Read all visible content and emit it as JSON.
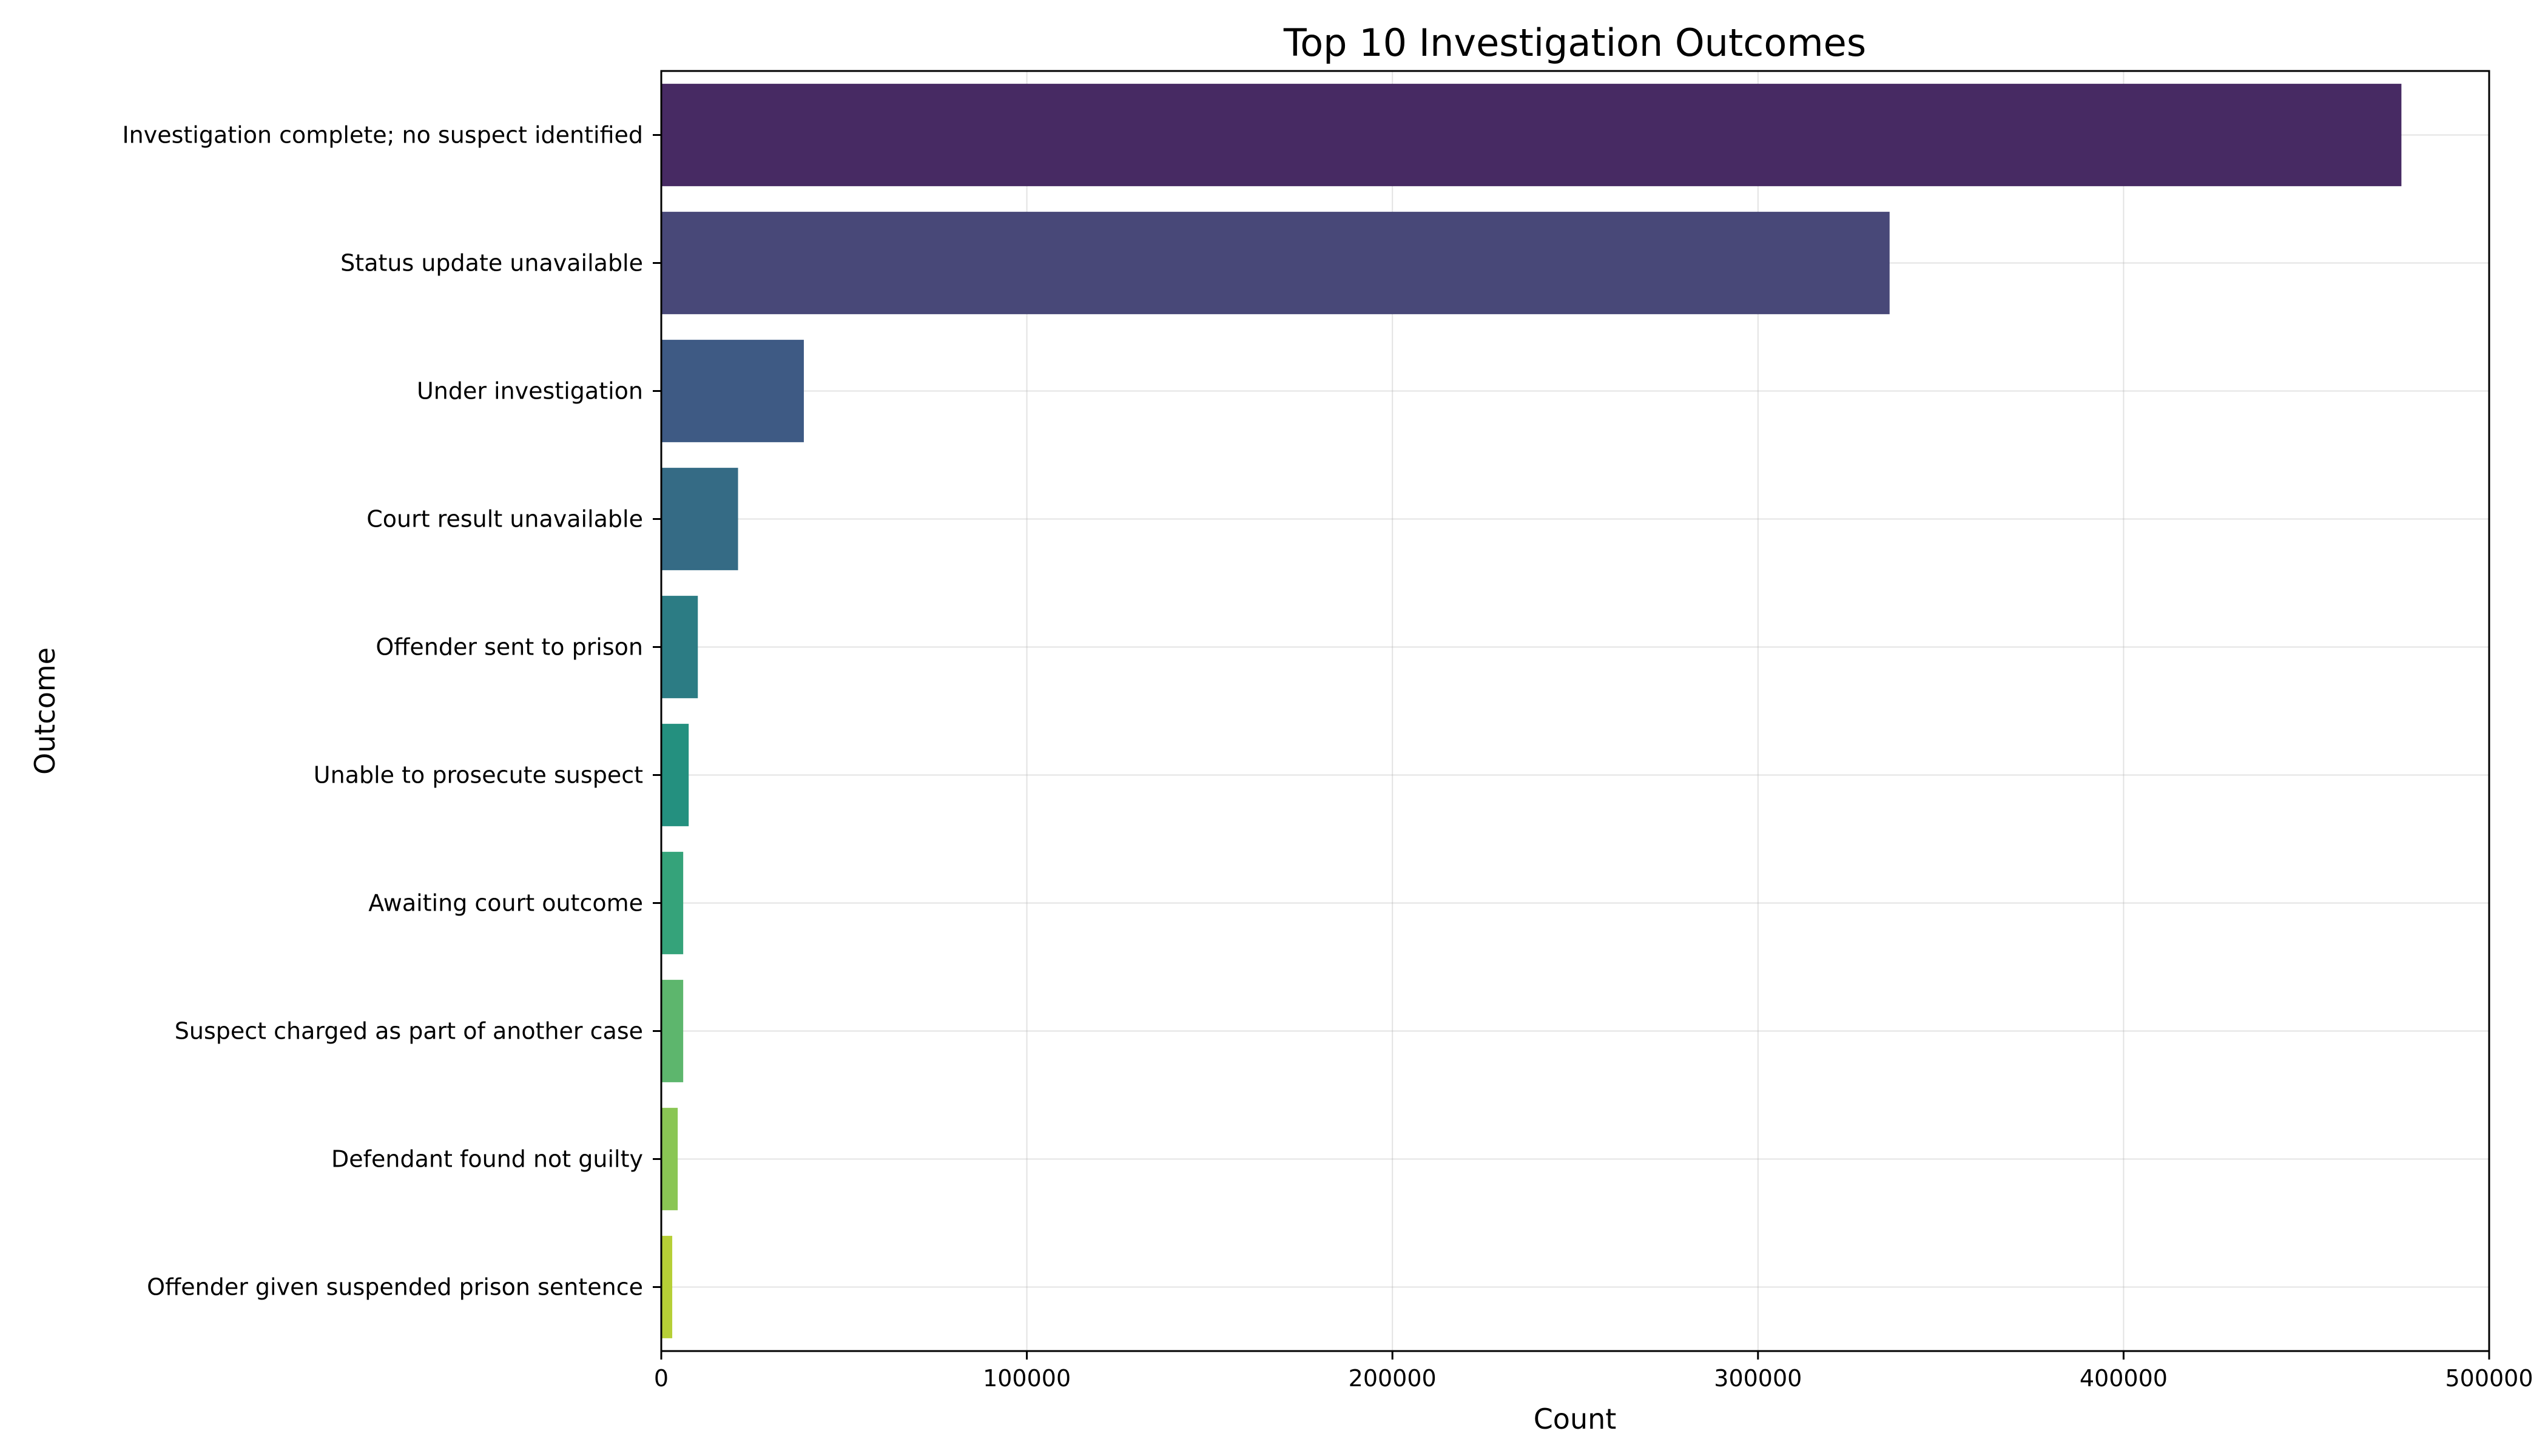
{
  "chart_data": {
    "type": "bar",
    "orientation": "horizontal",
    "title": "Top 10 Investigation Outcomes",
    "xlabel": "Count",
    "ylabel": "Outcome",
    "xlim": [
      0,
      500000
    ],
    "xticks": [
      0,
      100000,
      200000,
      300000,
      400000,
      500000
    ],
    "xtick_labels": [
      "0",
      "100000",
      "200000",
      "300000",
      "400000",
      "500000"
    ],
    "grid": true,
    "categories": [
      "Investigation complete; no suspect identified",
      "Status update unavailable",
      "Under investigation",
      "Court result unavailable",
      "Offender sent to prison",
      "Unable to prosecute suspect",
      "Awaiting court outcome",
      "Suspect charged as part of another case",
      "Defendant found not guilty",
      "Offender given suspended prison sentence"
    ],
    "values": [
      476000,
      336000,
      39000,
      21000,
      10000,
      7500,
      6000,
      6000,
      4500,
      3000
    ],
    "colors": [
      "#472A63",
      "#484878",
      "#3E5A84",
      "#356B85",
      "#2C7C84",
      "#24907F",
      "#35A37A",
      "#5DB66D",
      "#8AC654",
      "#B6CF36"
    ]
  }
}
